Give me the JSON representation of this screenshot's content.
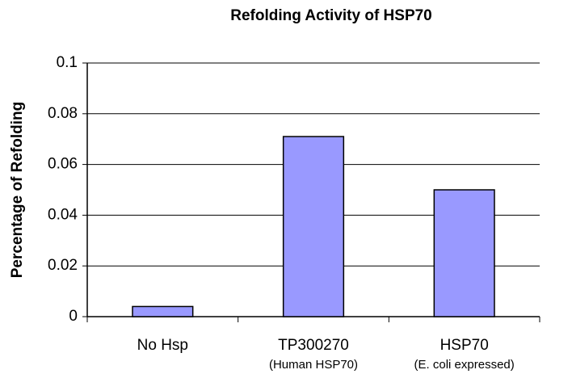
{
  "chart_data": {
    "type": "bar",
    "title": "Refolding Activity of HSP70",
    "y_label": "Percentage of Refolding",
    "categories": [
      [
        "No Hsp"
      ],
      [
        "TP300270",
        "(Human HSP70)"
      ],
      [
        "HSP70",
        "(E. coli expressed)"
      ]
    ],
    "values": [
      0.004,
      0.071,
      0.05
    ],
    "color": "#9999ff",
    "ylim": [
      0,
      0.1
    ],
    "yticks": [
      0,
      0.02,
      0.04,
      0.06,
      0.08,
      0.1
    ],
    "grid": true
  }
}
